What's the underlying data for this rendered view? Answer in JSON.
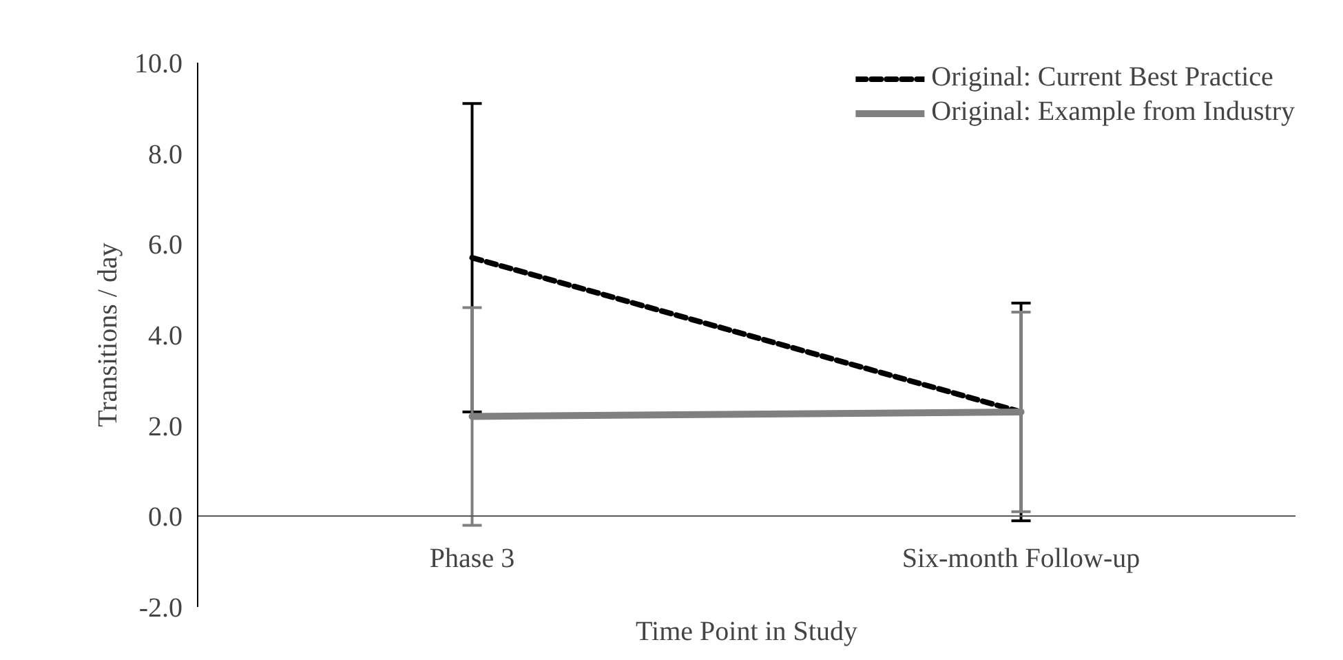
{
  "chart_data": {
    "type": "line",
    "xlabel": "Time Point in Study",
    "ylabel": "Transitions / day",
    "categories": [
      "Phase 3",
      "Six-month Follow-up"
    ],
    "series": [
      {
        "name": "Original: Current Best Practice",
        "color": "#000000",
        "line_style": "dashed",
        "values": [
          5.7,
          2.3
        ],
        "errors": [
          3.4,
          2.4
        ]
      },
      {
        "name": "Original: Example from Industry",
        "color": "#808080",
        "line_style": "solid",
        "values": [
          2.2,
          2.3
        ],
        "errors": [
          2.4,
          2.2
        ]
      }
    ],
    "ylim": [
      -2,
      10
    ],
    "yticks": [
      {
        "value": -2,
        "label": "-2.0"
      },
      {
        "value": 0,
        "label": "0.0"
      },
      {
        "value": 2,
        "label": "2.0"
      },
      {
        "value": 4,
        "label": "4.0"
      },
      {
        "value": 6,
        "label": "6.0"
      },
      {
        "value": 8,
        "label": "8.0"
      },
      {
        "value": 10,
        "label": "10.0"
      }
    ],
    "grid": false,
    "legend": "top right",
    "marker": "none"
  }
}
